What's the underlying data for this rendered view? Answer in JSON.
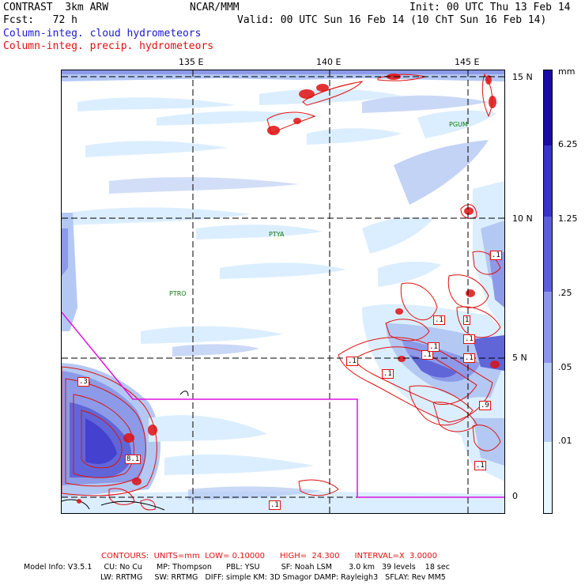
{
  "header": {
    "model_title": "CONTRAST  3km ARW",
    "center": "NCAR/MMM",
    "init": "Init: 00 UTC Thu 13 Feb 14",
    "fcst": "Fcst:   72 h",
    "valid": "Valid: 00 UTC Sun 16 Feb 14 (10 ChT Sun 16 Feb 14)",
    "field_cloud": "Column-integ. cloud hydrometeors",
    "field_precip": "Column-integ. precip. hydrometeors"
  },
  "map": {
    "longitude_labels": [
      "135 E",
      "140 E",
      "145 E"
    ],
    "latitude_labels": [
      "15 N",
      "10 N",
      "5 N",
      "0"
    ],
    "stations": [
      "PGUM",
      "PTYA",
      "PTRO"
    ],
    "contour_labels": [
      ".1",
      ".1",
      ".1",
      ".1",
      ".1",
      ".1",
      "1",
      ".9",
      ".1",
      ".1",
      ".1",
      ".1",
      "8.1",
      ".3"
    ],
    "colors": {
      "cloud_light": "#dbeeff",
      "cloud_mid": "#b4c8f4",
      "cloud_dark": "#8c9ae8",
      "cloud_darker": "#6066d8",
      "precip_contour": "#e01010",
      "domain_boundary": "#e010e0",
      "station_text": "#0a7a0a"
    }
  },
  "colorbar": {
    "unit": "mm",
    "labels": [
      "6.25",
      "1.25",
      ".25",
      ".05",
      ".01"
    ],
    "colors": [
      "#ffffff",
      "#e4f6ff",
      "#b6ccf6",
      "#8c94ec",
      "#5c5ede",
      "#3a32cc",
      "#1a0aa8"
    ]
  },
  "footer": {
    "contours_line": "CONTOURS:  UNITS=mm  LOW= 0.10000      HIGH=  24.300      INTERVAL=X  3.0000",
    "model_info_1": "Model Info: V3.5.1     CU: No Cu      MP: Thompson      PBL: YSU         SF: Noah LSM       3.0 km   39 levels    18 sec",
    "model_info_2": "LW: RRTMG     SW: RRTMG   DIFF: simple KM: 3D Smagor DAMP: Rayleigh3   SFLAY: Rev MM5"
  }
}
